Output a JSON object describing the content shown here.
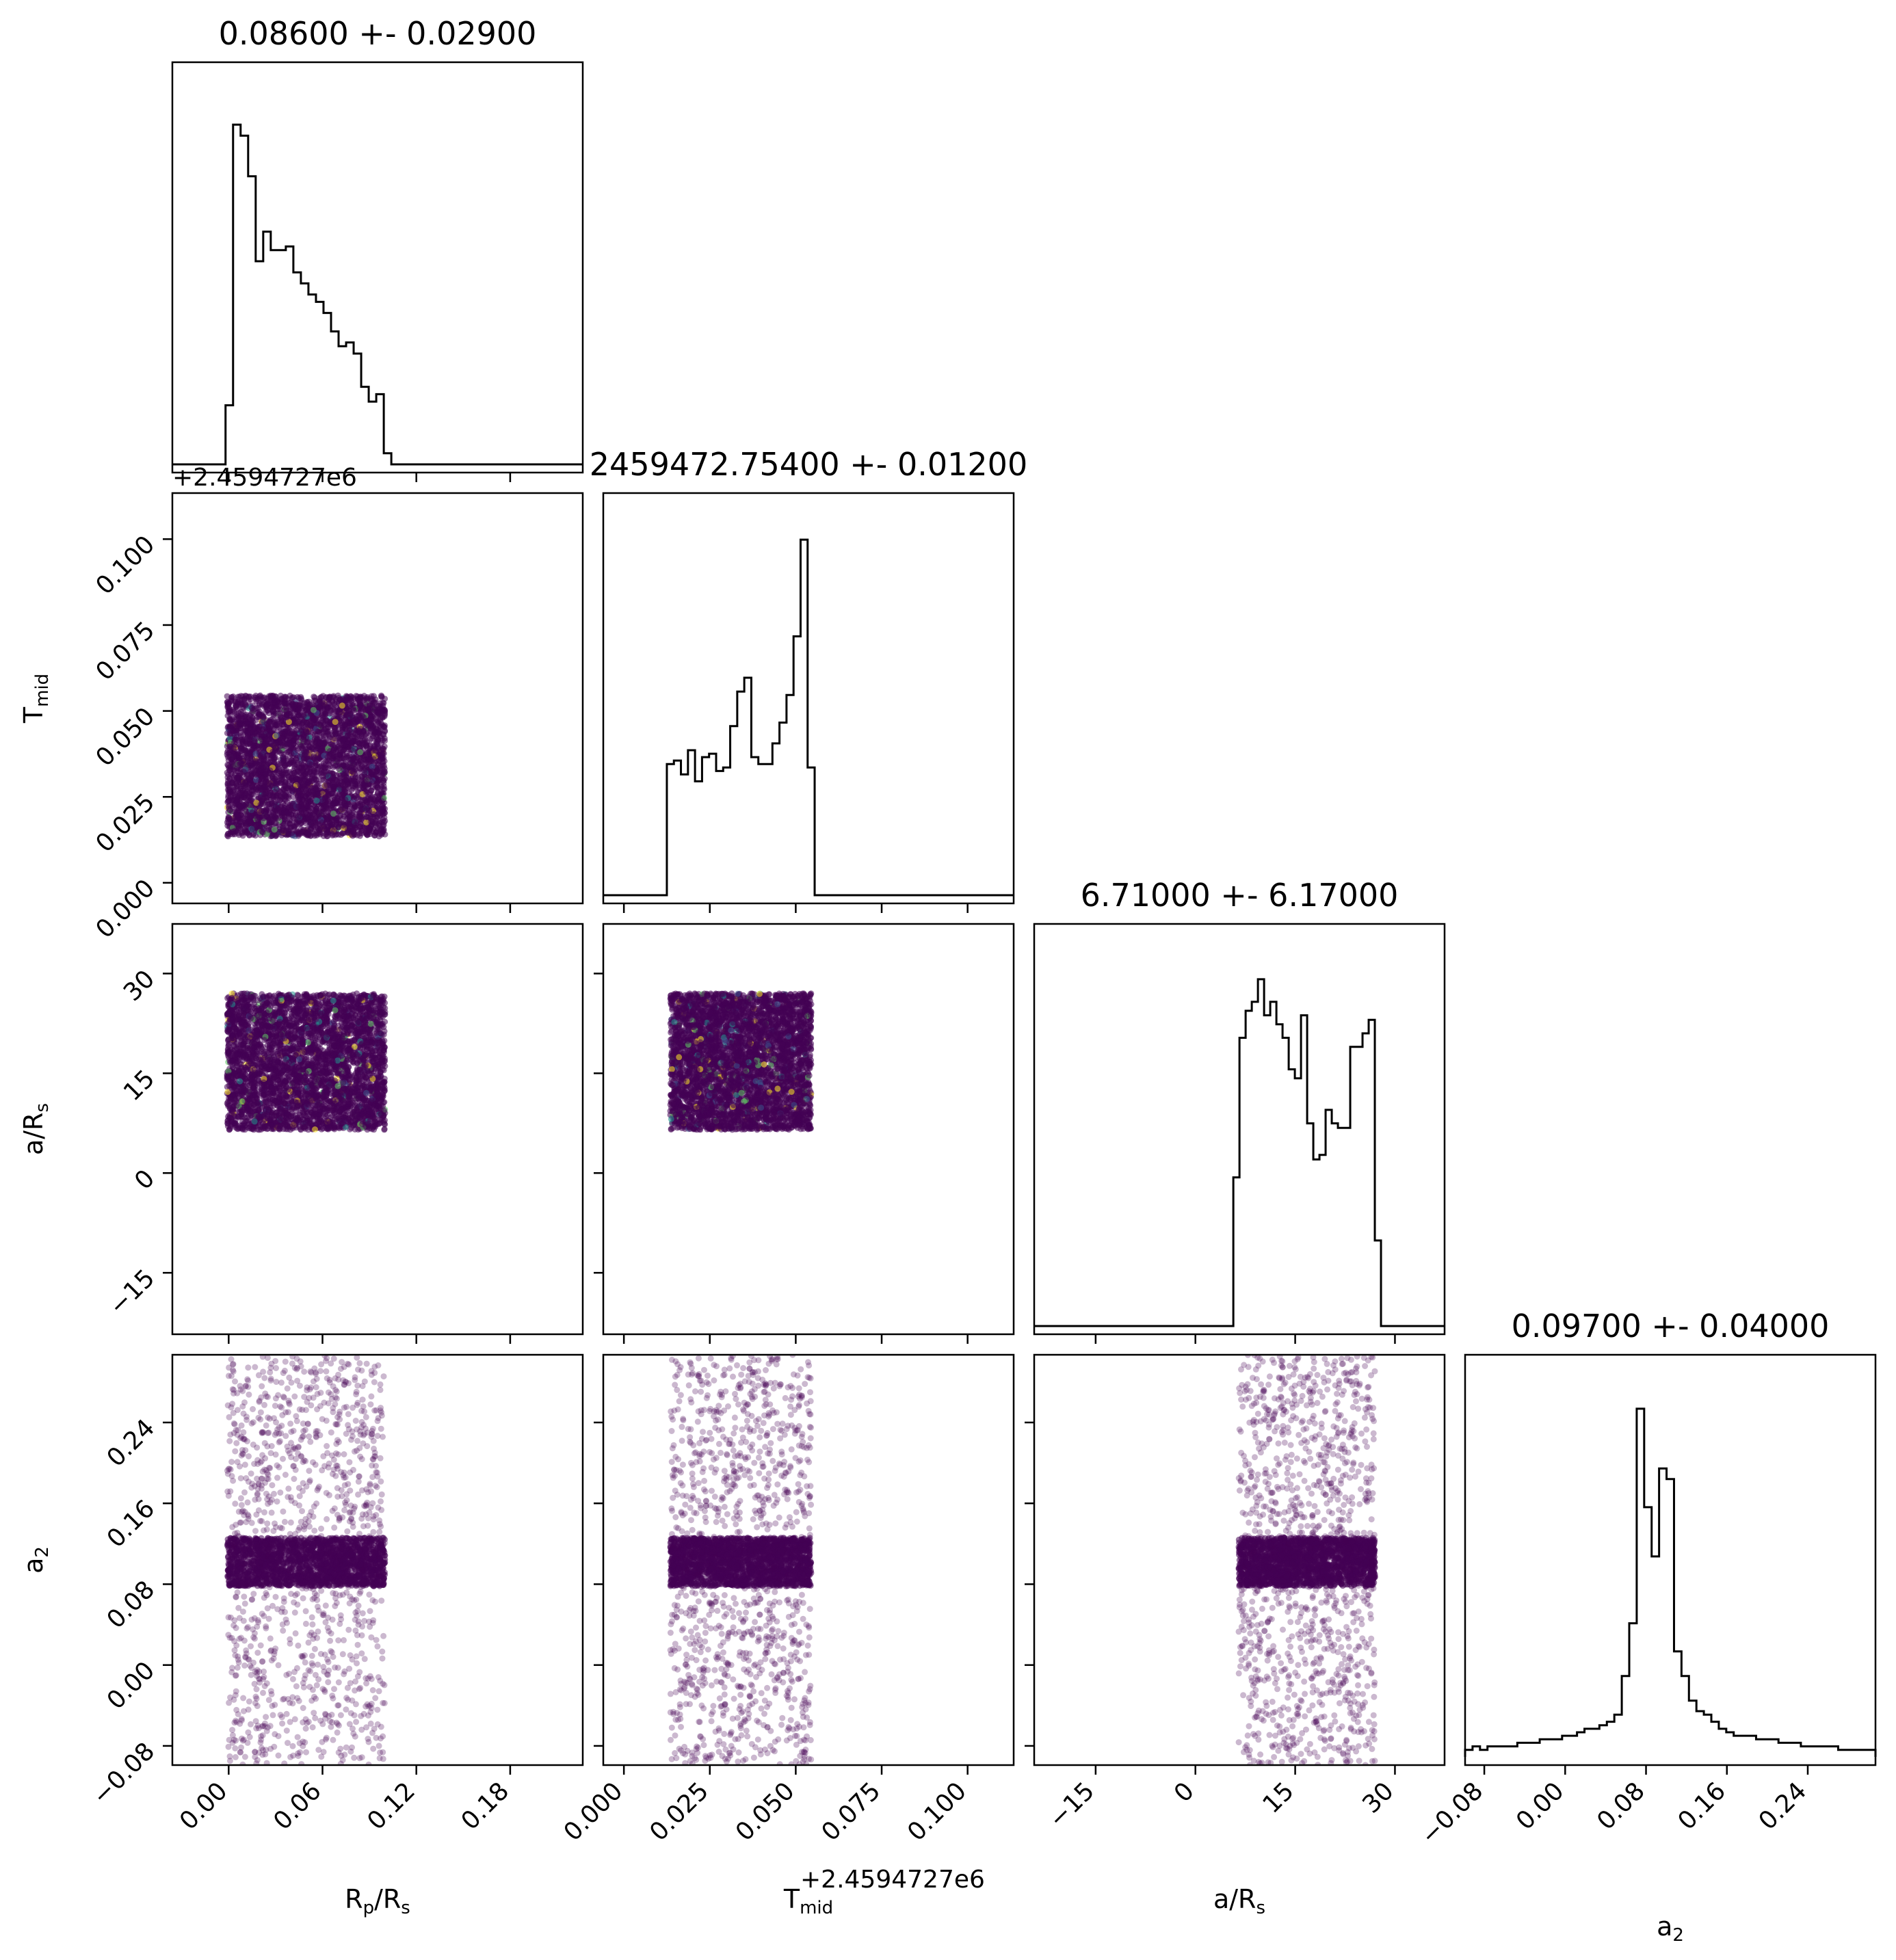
{
  "chart_data": {
    "type": "scatter",
    "layout": "corner-plot",
    "parameters": [
      {
        "key": "rp",
        "label_main": "R",
        "label_sub1": "p",
        "label_mid": "/R",
        "label_sub2": "s",
        "range": [
          -0.036,
          0.2264
        ],
        "ticks": [
          0.0,
          0.06,
          0.12,
          0.18
        ],
        "tick_labels": [
          "0.00",
          "0.06",
          "0.12",
          "0.18"
        ],
        "tick_labels_y": [],
        "title": "0.08600 +- 0.02900",
        "offset_text": ""
      },
      {
        "key": "tmid",
        "label_main": "T",
        "label_sub1": "mid",
        "label_mid": "",
        "label_sub2": "",
        "range": [
          -0.006,
          0.1134
        ],
        "ticks": [
          0.0,
          0.025,
          0.05,
          0.075,
          0.1
        ],
        "tick_labels": [
          "0.000",
          "0.025",
          "0.050",
          "0.075",
          "0.100"
        ],
        "tick_labels_y": [
          "0.000",
          "0.025",
          "0.050",
          "0.075",
          "0.100"
        ],
        "title": "2459472.75400 +- 0.01200",
        "offset_text": "+2.4594727e6"
      },
      {
        "key": "ars",
        "label_main": "a/R",
        "label_sub1": "",
        "label_mid": "",
        "label_sub2": "s",
        "range": [
          -24.24,
          37.46
        ],
        "ticks": [
          -15,
          0,
          15,
          30
        ],
        "tick_labels": [
          "−15",
          "0",
          "15",
          "30"
        ],
        "tick_labels_y": [
          "−15",
          "0",
          "15",
          "30"
        ],
        "title": "6.71000 +- 6.17000",
        "offset_text": ""
      },
      {
        "key": "a2",
        "label_main": "a",
        "label_sub1": "2",
        "label_mid": "",
        "label_sub2": "",
        "range": [
          -0.099,
          0.307
        ],
        "ticks": [
          -0.08,
          0.0,
          0.08,
          0.16,
          0.24
        ],
        "tick_labels": [
          "−0.08",
          "0.00",
          "0.08",
          "0.16",
          "0.24"
        ],
        "tick_labels_y": [
          "−0.08",
          "0.00",
          "0.08",
          "0.16",
          "0.24"
        ],
        "title": "0.09700 +- 0.04000",
        "offset_text": ""
      }
    ],
    "histograms": [
      {
        "param": "rp",
        "bin_min": -0.002,
        "bin_max": 0.104,
        "values": [
          0.16,
          0.92,
          0.89,
          0.78,
          0.55,
          0.63,
          0.58,
          0.58,
          0.59,
          0.52,
          0.49,
          0.46,
          0.44,
          0.41,
          0.36,
          0.32,
          0.33,
          0.3,
          0.21,
          0.17,
          0.19,
          0.03
        ],
        "ymax": 1.0
      },
      {
        "param": "tmid",
        "bin_min": 0.0125,
        "bin_max": 0.0555,
        "values": [
          0.38,
          0.39,
          0.35,
          0.42,
          0.33,
          0.4,
          0.41,
          0.36,
          0.37,
          0.49,
          0.59,
          0.63,
          0.4,
          0.38,
          0.38,
          0.44,
          0.5,
          0.58,
          0.75,
          1.03,
          0.37
        ],
        "ymax": 1.07
      },
      {
        "param": "ars",
        "bin_min": 5.7,
        "bin_max": 27.9,
        "values": [
          0.33,
          0.64,
          0.7,
          0.72,
          0.77,
          0.69,
          0.72,
          0.67,
          0.64,
          0.57,
          0.55,
          0.69,
          0.45,
          0.37,
          0.38,
          0.48,
          0.45,
          0.44,
          0.44,
          0.62,
          0.62,
          0.65,
          0.68,
          0.19
        ],
        "ymax": 0.82
      },
      {
        "param": "a2",
        "bin_min": -0.099,
        "bin_max": 0.307,
        "values": [
          0.02,
          0.03,
          0.02,
          0.03,
          0.03,
          0.03,
          0.03,
          0.04,
          0.04,
          0.04,
          0.05,
          0.05,
          0.05,
          0.06,
          0.06,
          0.07,
          0.08,
          0.08,
          0.09,
          0.1,
          0.12,
          0.23,
          0.38,
          0.99,
          0.71,
          0.57,
          0.82,
          0.79,
          0.3,
          0.23,
          0.16,
          0.13,
          0.12,
          0.1,
          0.08,
          0.07,
          0.06,
          0.06,
          0.06,
          0.05,
          0.05,
          0.05,
          0.04,
          0.04,
          0.04,
          0.03,
          0.03,
          0.03,
          0.03,
          0.03,
          0.02,
          0.02,
          0.02,
          0.02,
          0.02
        ],
        "ymax": 1.05
      }
    ],
    "uniform_ranges": {
      "rp": [
        -0.001,
        0.1
      ],
      "tmid": [
        0.0135,
        0.0545
      ],
      "ars": [
        6.5,
        27.0
      ]
    },
    "a2_distribution": {
      "core_center": 0.102,
      "core_halfwidth": 0.024,
      "spread_range": [
        -0.099,
        0.307
      ]
    },
    "colors": {
      "points": "#440154",
      "histogram": "#000000",
      "highlights": [
        "#21918c",
        "#5ec962",
        "#fde725",
        "#3b528b"
      ]
    },
    "grid": false
  }
}
